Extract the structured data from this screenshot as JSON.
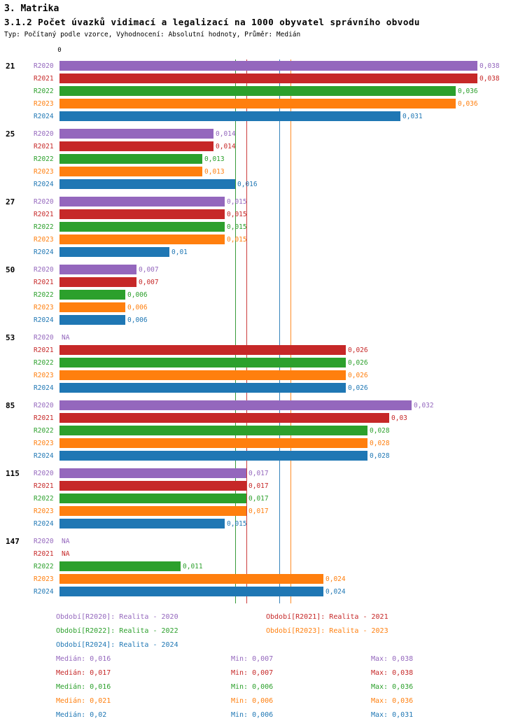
{
  "header": {
    "title": "3. Matrika",
    "subtitle": "3.1.2 Počet úvazků vidimací a legalizací na 1000 obyvatel správního obvodu",
    "meta": "Typ: Počítaný podle vzorce, Vyhodnocení: Absolutní hodnoty, Průměr: Medián"
  },
  "chart_data": {
    "type": "bar",
    "orientation": "horizontal",
    "x_axis": {
      "zero_label": "0",
      "max": 0.042
    },
    "na_label": "NA",
    "stat_labels": {
      "median": "Medián",
      "min": "Min",
      "max": "Max"
    },
    "series": [
      {
        "key": "R2020",
        "label": "R2020",
        "color": "#9467bd",
        "legend": "Období[R2020]: Realita - 2020",
        "median": 0.016,
        "stats": {
          "median": "0,016",
          "min": "0,007",
          "max": "0,038"
        }
      },
      {
        "key": "R2021",
        "label": "R2021",
        "color": "#c62828",
        "legend": "Období[R2021]: Realita - 2021",
        "median": 0.017,
        "stats": {
          "median": "0,017",
          "min": "0,007",
          "max": "0,038"
        }
      },
      {
        "key": "R2022",
        "label": "R2022",
        "color": "#2ca02c",
        "legend": "Období[R2022]: Realita - 2022",
        "median": 0.016,
        "stats": {
          "median": "0,016",
          "min": "0,006",
          "max": "0,036"
        }
      },
      {
        "key": "R2023",
        "label": "R2023",
        "color": "#ff7f0e",
        "legend": "Období[R2023]: Realita - 2023",
        "median": 0.021,
        "stats": {
          "median": "0,021",
          "min": "0,006",
          "max": "0,036"
        }
      },
      {
        "key": "R2024",
        "label": "R2024",
        "color": "#1f77b4",
        "legend": "Období[R2024]: Realita - 2024",
        "median": 0.02,
        "stats": {
          "median": "0,02",
          "min": "0,006",
          "max": "0,031"
        }
      }
    ],
    "groups": [
      {
        "id": "21",
        "values": [
          0.038,
          0.038,
          0.036,
          0.036,
          0.031
        ],
        "labels": [
          "0,038",
          "0,038",
          "0,036",
          "0,036",
          "0,031"
        ]
      },
      {
        "id": "25",
        "values": [
          0.014,
          0.014,
          0.013,
          0.013,
          0.016
        ],
        "labels": [
          "0,014",
          "0,014",
          "0,013",
          "0,013",
          "0,016"
        ]
      },
      {
        "id": "27",
        "values": [
          0.015,
          0.015,
          0.015,
          0.015,
          0.01
        ],
        "labels": [
          "0,015",
          "0,015",
          "0,015",
          "0,015",
          "0,01"
        ]
      },
      {
        "id": "50",
        "values": [
          0.007,
          0.007,
          0.006,
          0.006,
          0.006
        ],
        "labels": [
          "0,007",
          "0,007",
          "0,006",
          "0,006",
          "0,006"
        ]
      },
      {
        "id": "53",
        "values": [
          null,
          0.026,
          0.026,
          0.026,
          0.026
        ],
        "labels": [
          "NA",
          "0,026",
          "0,026",
          "0,026",
          "0,026"
        ]
      },
      {
        "id": "85",
        "values": [
          0.032,
          0.03,
          0.028,
          0.028,
          0.028
        ],
        "labels": [
          "0,032",
          "0,03",
          "0,028",
          "0,028",
          "0,028"
        ]
      },
      {
        "id": "115",
        "values": [
          0.017,
          0.017,
          0.017,
          0.017,
          0.015
        ],
        "labels": [
          "0,017",
          "0,017",
          "0,017",
          "0,017",
          "0,015"
        ]
      },
      {
        "id": "147",
        "values": [
          null,
          null,
          0.011,
          0.024,
          0.024
        ],
        "labels": [
          "NA",
          "NA",
          "0,011",
          "0,024",
          "0,024"
        ]
      }
    ]
  }
}
